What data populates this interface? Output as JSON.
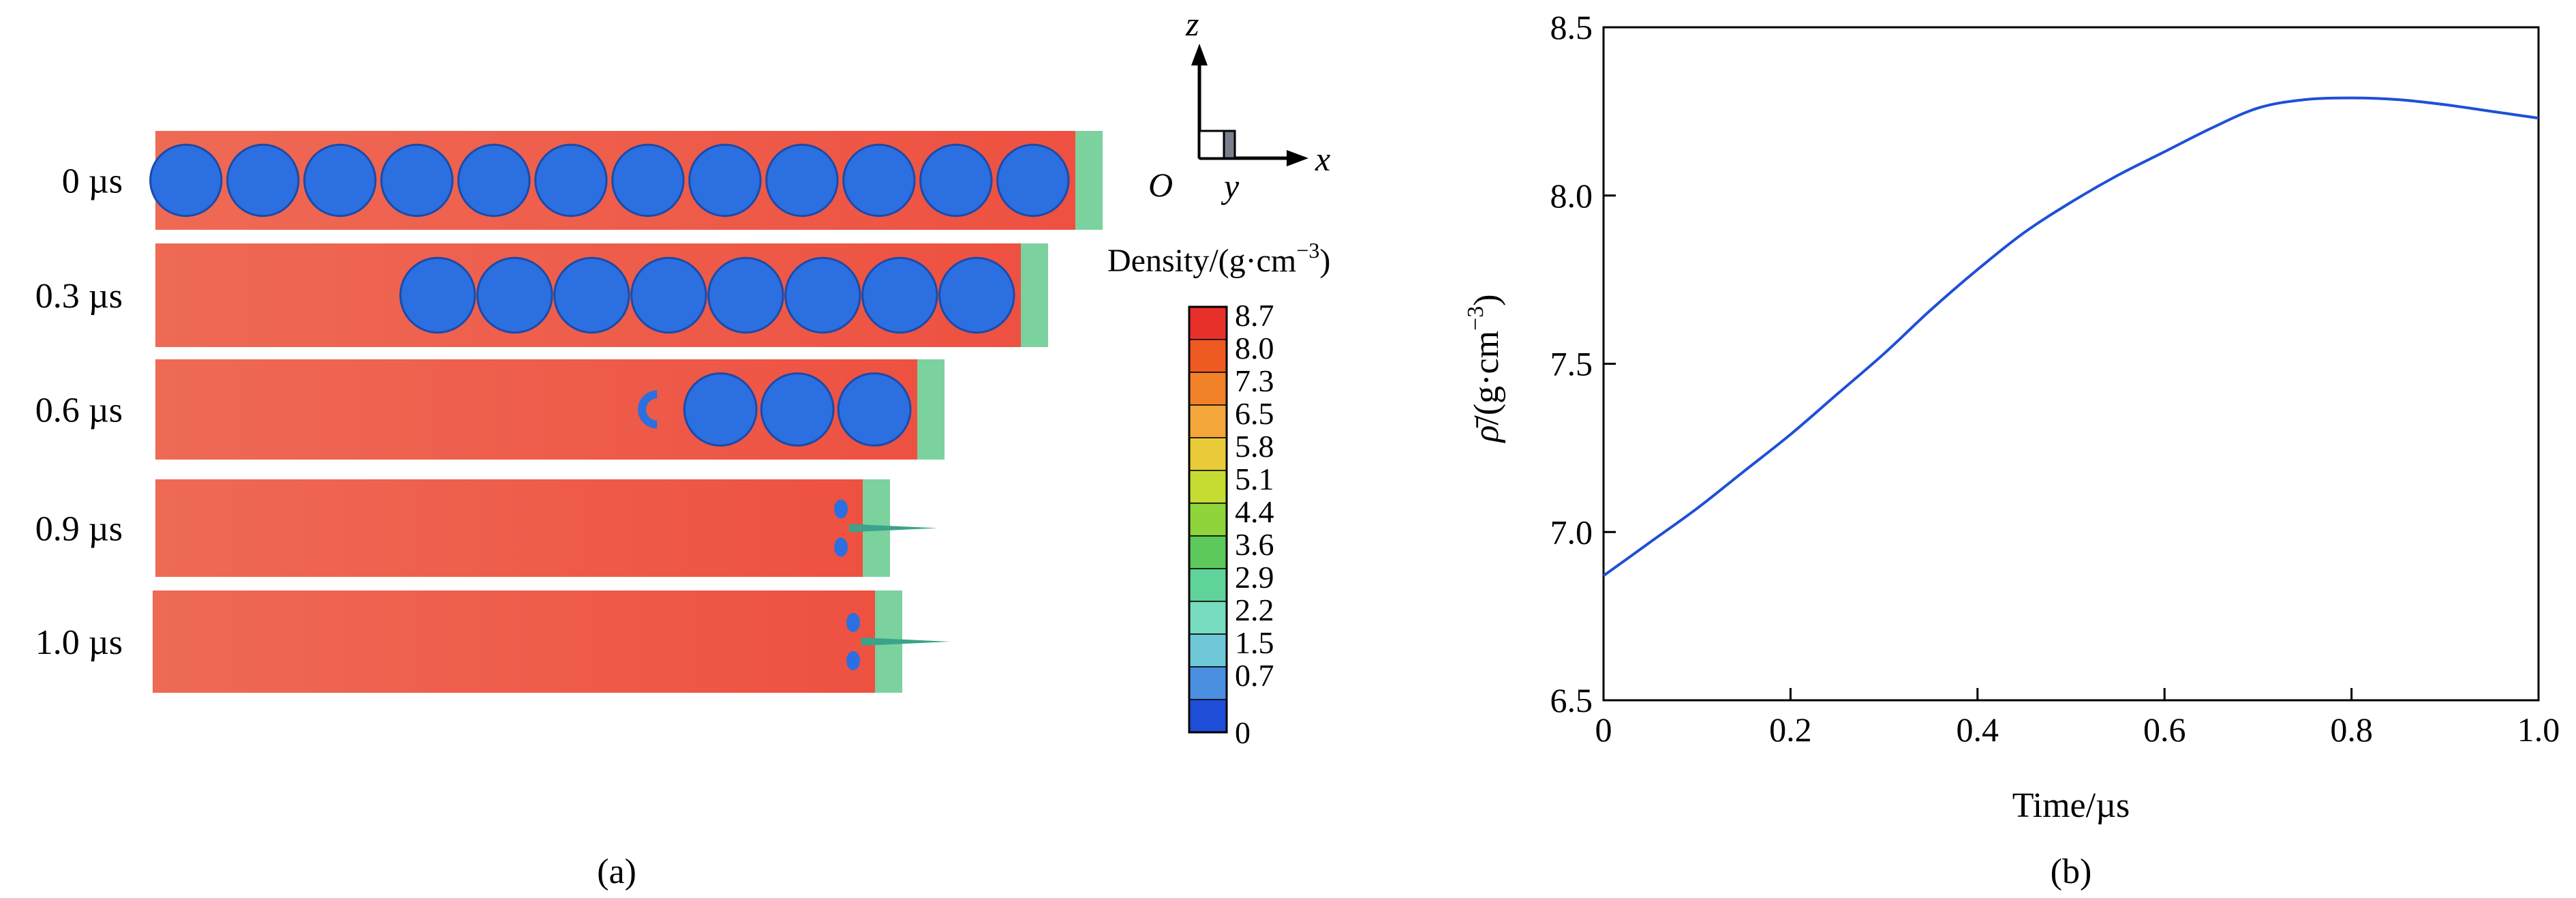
{
  "panel_a": {
    "label": "(a)",
    "frames": [
      {
        "time_label": "0 µs",
        "voids": 12,
        "tip": 0.9,
        "intact": 12
      },
      {
        "time_label": "0.3 µs",
        "voids": 8,
        "tip": 0.84,
        "intact": 8
      },
      {
        "time_label": "0.6 µs",
        "voids": 3,
        "tip": 0.76,
        "intact": 3
      },
      {
        "time_label": "0.9 µs",
        "voids": 0,
        "tip": 0.73,
        "intact": 0
      },
      {
        "time_label": "1.0 µs",
        "voids": 0,
        "tip": 0.72,
        "intact": 0
      }
    ],
    "axes": {
      "z": "z",
      "x": "x",
      "y": "y",
      "origin": "O"
    },
    "colorbar": {
      "title": "Density/(g·cm",
      "title_exp": "−3",
      "title_close": ")",
      "ticks": [
        "8.7",
        "8.0",
        "7.3",
        "6.5",
        "5.8",
        "5.1",
        "4.4",
        "3.6",
        "2.9",
        "2.2",
        "1.5",
        "0.7",
        "0"
      ],
      "colors": [
        "#e8302a",
        "#ef5a22",
        "#f2822a",
        "#f3a63a",
        "#eacb3a",
        "#c6dc32",
        "#8fd43a",
        "#5cc95a",
        "#5fd39a",
        "#78dcc0",
        "#6fc8d8",
        "#4a8fe0",
        "#1f4fd8"
      ]
    },
    "colors": {
      "copper": "#ee5b50",
      "void": "#2b6fe0",
      "jet": "#6ee0a8"
    }
  },
  "panel_b": {
    "label": "(b)",
    "chart_data": {
      "type": "line",
      "xlabel": "Time/µs",
      "ylabel_symbol": "ρ̄",
      "ylabel_unit": "/(g·cm",
      "ylabel_exp": "−3",
      "ylabel_close": ")",
      "xlim": [
        0,
        1.0
      ],
      "ylim": [
        6.5,
        8.5
      ],
      "xticks": [
        "0",
        "0.2",
        "0.4",
        "0.6",
        "0.8",
        "1.0"
      ],
      "yticks": [
        "6.5",
        "7.0",
        "7.5",
        "8.0",
        "8.5"
      ],
      "grid": false,
      "series": [
        {
          "color": "#1f4fd8",
          "x": [
            0,
            0.05,
            0.1,
            0.15,
            0.2,
            0.25,
            0.3,
            0.35,
            0.4,
            0.45,
            0.5,
            0.55,
            0.6,
            0.65,
            0.7,
            0.75,
            0.8,
            0.85,
            0.9,
            0.95,
            1.0
          ],
          "y": [
            6.87,
            6.97,
            7.07,
            7.18,
            7.29,
            7.41,
            7.53,
            7.66,
            7.78,
            7.89,
            7.98,
            8.06,
            8.13,
            8.2,
            8.26,
            8.285,
            8.29,
            8.285,
            8.27,
            8.25,
            8.23
          ]
        }
      ]
    }
  }
}
